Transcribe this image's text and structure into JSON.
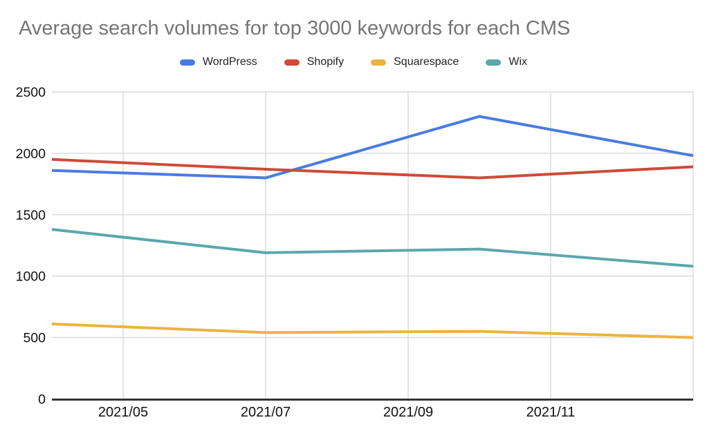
{
  "chart_data": {
    "type": "line",
    "title": "Average search volumes for top 3000 keywords for each CMS",
    "x": [
      "2021/04",
      "2021/07",
      "2021/10",
      "2022/01"
    ],
    "x_domain": [
      "2021/04",
      "2022/01"
    ],
    "x_tick_labels": [
      "2021/05",
      "2021/07",
      "2021/09",
      "2021/11"
    ],
    "y_ticks": [
      0,
      500,
      1000,
      1500,
      2000,
      2500
    ],
    "ylim": [
      0,
      2500
    ],
    "grid": true,
    "legend_position": "top-center",
    "series": [
      {
        "name": "WordPress",
        "color": "#4a7be0",
        "values": [
          1860,
          1800,
          2300,
          1980
        ]
      },
      {
        "name": "Shopify",
        "color": "#d04939",
        "values": [
          1950,
          1870,
          1800,
          1890
        ]
      },
      {
        "name": "Squarespace",
        "color": "#ebb341",
        "values": [
          610,
          540,
          550,
          500
        ]
      },
      {
        "name": "Wix",
        "color": "#5aa8ac",
        "values": [
          1380,
          1190,
          1220,
          1080
        ]
      }
    ],
    "colors": {
      "title": "#757575",
      "axis_labels": "#111111",
      "gridline": "#d9d9d9",
      "axis_line": "#333333",
      "background": "#ffffff"
    }
  }
}
